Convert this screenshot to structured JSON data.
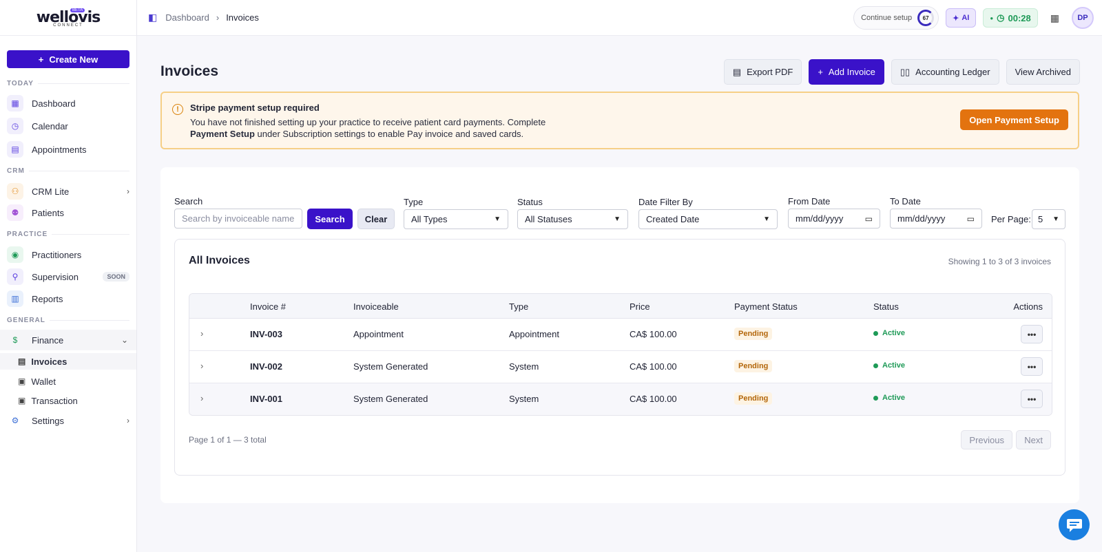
{
  "brand": {
    "logo": "wellovis",
    "logo_sub": "CONNECT",
    "badge": "BETA"
  },
  "sidebar": {
    "create_label": "Create New",
    "sections": {
      "today": "TODAY",
      "crm": "CRM",
      "practice": "PRACTICE",
      "general": "GENERAL"
    },
    "items": {
      "dashboard": "Dashboard",
      "calendar": "Calendar",
      "appointments": "Appointments",
      "crm_lite": "CRM Lite",
      "patients": "Patients",
      "practitioners": "Practitioners",
      "supervision": "Supervision",
      "supervision_badge": "SOON",
      "reports": "Reports",
      "finance": "Finance",
      "invoices": "Invoices",
      "wallet": "Wallet",
      "transaction": "Transaction",
      "settings": "Settings"
    }
  },
  "topbar": {
    "breadcrumb_root": "Dashboard",
    "breadcrumb_current": "Invoices",
    "continue_label": "Continue setup",
    "continue_progress": "67",
    "ai_label": "AI",
    "timer": "00:28",
    "avatar_initials": "DP"
  },
  "page": {
    "title": "Invoices",
    "buttons": {
      "export_pdf": "Export PDF",
      "add_invoice": "Add Invoice",
      "ledger": "Accounting Ledger",
      "archived": "View Archived"
    }
  },
  "alert": {
    "title": "Stripe payment setup required",
    "text_1": "You have not finished setting up your practice to receive patient card payments. Complete",
    "text_bold": "Payment Setup",
    "text_2": " under Subscription settings to enable Pay invoice and saved cards.",
    "button": "Open Payment Setup"
  },
  "filters": {
    "search_label": "Search",
    "search_placeholder": "Search by invoiceable name",
    "search_button": "Search",
    "clear_button": "Clear",
    "type_label": "Type",
    "type_value": "All Types",
    "status_label": "Status",
    "status_value": "All Statuses",
    "date_filter_label": "Date Filter By",
    "date_filter_value": "Created Date",
    "from_label": "From Date",
    "from_placeholder": "mm/dd/yyyy",
    "to_label": "To Date",
    "to_placeholder": "mm/dd/yyyy",
    "per_page_label": "Per Page:",
    "per_page_value": "5"
  },
  "table": {
    "title": "All Invoices",
    "count_text": "Showing 1 to 3 of 3 invoices",
    "headers": {
      "invoice": "Invoice #",
      "invoiceable": "Invoiceable",
      "type": "Type",
      "price": "Price",
      "payment_status": "Payment Status",
      "status": "Status",
      "actions": "Actions"
    },
    "rows": [
      {
        "invoice": "INV-003",
        "invoiceable": "Appointment",
        "type": "Appointment",
        "price": "CA$ 100.00",
        "payment_status": "Pending",
        "status": "Active"
      },
      {
        "invoice": "INV-002",
        "invoiceable": "System Generated",
        "type": "System",
        "price": "CA$ 100.00",
        "payment_status": "Pending",
        "status": "Active"
      },
      {
        "invoice": "INV-001",
        "invoiceable": "System Generated",
        "type": "System",
        "price": "CA$ 100.00",
        "payment_status": "Pending",
        "status": "Active"
      }
    ],
    "actions_glyph": "•••"
  },
  "pagination": {
    "info": "Page 1 of 1 — 3 total",
    "previous": "Previous",
    "next": "Next"
  },
  "colors": {
    "primary": "#3a12c9",
    "warning": "#e3730f",
    "success": "#1e9a57",
    "chat": "#1a7fe0"
  }
}
